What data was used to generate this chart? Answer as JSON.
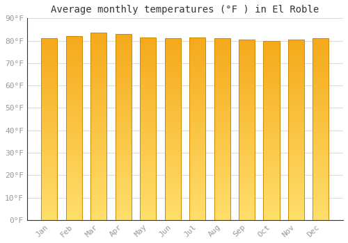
{
  "title": "Average monthly temperatures (°F ) in El Roble",
  "months": [
    "Jan",
    "Feb",
    "Mar",
    "Apr",
    "May",
    "Jun",
    "Jul",
    "Aug",
    "Sep",
    "Oct",
    "Nov",
    "Dec"
  ],
  "values": [
    81,
    82,
    83.5,
    83,
    81.5,
    81,
    81.5,
    81,
    80.5,
    80,
    80.5,
    81
  ],
  "ylim": [
    0,
    90
  ],
  "yticks": [
    0,
    10,
    20,
    30,
    40,
    50,
    60,
    70,
    80,
    90
  ],
  "ytick_labels": [
    "0°F",
    "10°F",
    "20°F",
    "30°F",
    "40°F",
    "50°F",
    "60°F",
    "70°F",
    "80°F",
    "90°F"
  ],
  "bar_color_light": "#FFD966",
  "bar_color_dark": "#F5A800",
  "bar_edge_color": "#CC8800",
  "background_color": "#FFFFFF",
  "plot_bg_color": "#FFFFFF",
  "title_fontsize": 10,
  "tick_fontsize": 8,
  "grid_color": "#DDDDDD",
  "bar_width": 0.65,
  "figsize": [
    5.0,
    3.5
  ],
  "dpi": 100
}
